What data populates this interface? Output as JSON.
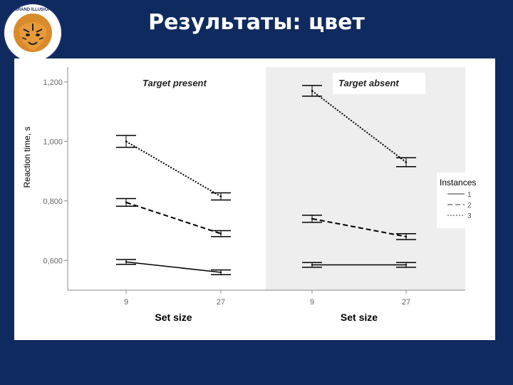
{
  "slide": {
    "title": "Результаты: цвет",
    "logo_text": "GRAND ILLUSION",
    "logo_icon": "tiger-head-icon"
  },
  "colors": {
    "background": "#0f2a5f",
    "panel_shade": "#eeeeee",
    "line": "#000000"
  },
  "chart_data": [
    {
      "type": "line",
      "title": "Target present",
      "xlabel": "Set size",
      "ylabel": "Reaction time, s",
      "categories": [
        "9",
        "27"
      ],
      "ylim": [
        0.5,
        1.25
      ],
      "yticks": [
        "0,600",
        "0,800",
        "1,000",
        "1,200"
      ],
      "ytick_values": [
        0.6,
        0.8,
        1.0,
        1.2
      ],
      "shaded": false,
      "series": [
        {
          "name": "1",
          "dash": "solid",
          "values": [
            0.595,
            0.56
          ],
          "errors": [
            0.008,
            0.008
          ]
        },
        {
          "name": "2",
          "dash": "dashed",
          "values": [
            0.795,
            0.69
          ],
          "errors": [
            0.013,
            0.01
          ]
        },
        {
          "name": "3",
          "dash": "dotted",
          "values": [
            1.0,
            0.815
          ],
          "errors": [
            0.02,
            0.012
          ]
        }
      ]
    },
    {
      "type": "line",
      "title": "Target absent",
      "xlabel": "Set size",
      "ylabel": "",
      "categories": [
        "9",
        "27"
      ],
      "ylim": [
        0.5,
        1.25
      ],
      "shaded": true,
      "series": [
        {
          "name": "1",
          "dash": "solid",
          "values": [
            0.585,
            0.585
          ],
          "errors": [
            0.008,
            0.008
          ]
        },
        {
          "name": "2",
          "dash": "dashed",
          "values": [
            0.74,
            0.68
          ],
          "errors": [
            0.012,
            0.01
          ]
        },
        {
          "name": "3",
          "dash": "dotted",
          "values": [
            1.17,
            0.93
          ],
          "errors": [
            0.018,
            0.015
          ]
        }
      ]
    }
  ],
  "legend": {
    "title": "Instances",
    "placement": "right",
    "entries": [
      {
        "label": "1",
        "dash": "solid"
      },
      {
        "label": "2",
        "dash": "dashed"
      },
      {
        "label": "3",
        "dash": "dotted"
      }
    ]
  }
}
